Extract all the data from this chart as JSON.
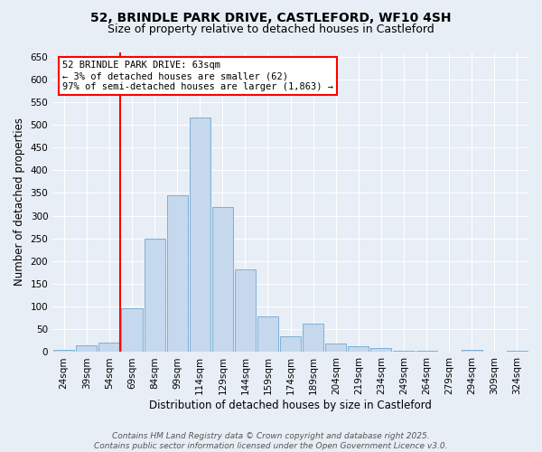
{
  "title_line1": "52, BRINDLE PARK DRIVE, CASTLEFORD, WF10 4SH",
  "title_line2": "Size of property relative to detached houses in Castleford",
  "xlabel": "Distribution of detached houses by size in Castleford",
  "ylabel": "Number of detached properties",
  "bar_color": "#c5d8ed",
  "bar_edge_color": "#6fa8d0",
  "background_color": "#e8eef5",
  "grid_color": "white",
  "categories": [
    "24sqm",
    "39sqm",
    "54sqm",
    "69sqm",
    "84sqm",
    "99sqm",
    "114sqm",
    "129sqm",
    "144sqm",
    "159sqm",
    "174sqm",
    "189sqm",
    "204sqm",
    "219sqm",
    "234sqm",
    "249sqm",
    "264sqm",
    "279sqm",
    "294sqm",
    "309sqm",
    "324sqm"
  ],
  "values": [
    5,
    15,
    20,
    97,
    250,
    345,
    515,
    320,
    182,
    79,
    35,
    63,
    18,
    12,
    8,
    3,
    2,
    0,
    5,
    0,
    3
  ],
  "ylim": [
    0,
    660
  ],
  "yticks": [
    0,
    50,
    100,
    150,
    200,
    250,
    300,
    350,
    400,
    450,
    500,
    550,
    600,
    650
  ],
  "vline_x": 2.5,
  "annotation_text": "52 BRINDLE PARK DRIVE: 63sqm\n← 3% of detached houses are smaller (62)\n97% of semi-detached houses are larger (1,863) →",
  "annotation_box_color": "white",
  "annotation_box_edge": "red",
  "vline_color": "red",
  "footer_line1": "Contains HM Land Registry data © Crown copyright and database right 2025.",
  "footer_line2": "Contains public sector information licensed under the Open Government Licence v3.0.",
  "title_fontsize": 10,
  "subtitle_fontsize": 9,
  "axis_label_fontsize": 8.5,
  "tick_fontsize": 7.5,
  "annotation_fontsize": 7.5,
  "footer_fontsize": 6.5
}
